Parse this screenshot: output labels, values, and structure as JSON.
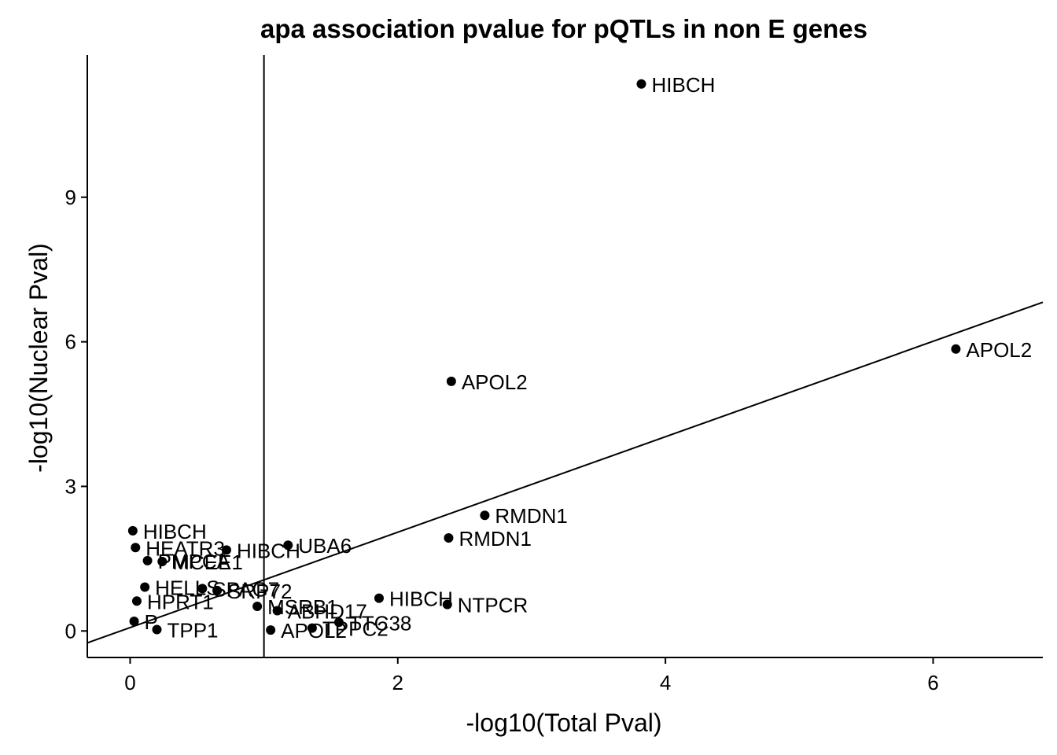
{
  "chart_data": {
    "type": "scatter",
    "title": "apa association pvalue for pQTLs in non E genes",
    "xlabel": "-log10(Total Pval)",
    "ylabel": "-log10(Nuclear Pval)",
    "xlim": [
      -0.32,
      6.82
    ],
    "ylim": [
      -0.55,
      11.95
    ],
    "xticks": [
      0,
      2,
      4,
      6
    ],
    "yticks": [
      0,
      3,
      6,
      9
    ],
    "vline_x": 1,
    "reference_line": {
      "intercept": 0.07,
      "slope": 0.99
    },
    "grid": false,
    "points": [
      {
        "x": 3.82,
        "y": 11.35,
        "label": "HIBCH"
      },
      {
        "x": 6.17,
        "y": 5.85,
        "label": "APOL2"
      },
      {
        "x": 2.4,
        "y": 5.18,
        "label": "APOL2"
      },
      {
        "x": 2.65,
        "y": 2.4,
        "label": "RMDN1"
      },
      {
        "x": 2.38,
        "y": 1.93,
        "label": "RMDN1"
      },
      {
        "x": 1.18,
        "y": 1.78,
        "label": "UBA6"
      },
      {
        "x": 0.72,
        "y": 1.68,
        "label": "HIBCH"
      },
      {
        "x": 0.02,
        "y": 2.08,
        "label": "HIBCH"
      },
      {
        "x": 0.04,
        "y": 1.73,
        "label": "HEATR3"
      },
      {
        "x": 0.13,
        "y": 1.46,
        "label": "PMPCA"
      },
      {
        "x": 0.24,
        "y": 1.44,
        "label": "MCEE1"
      },
      {
        "x": 1.86,
        "y": 0.68,
        "label": "HIBCH"
      },
      {
        "x": 2.37,
        "y": 0.55,
        "label": "NTPCR"
      },
      {
        "x": 0.11,
        "y": 0.91,
        "label": "HELLS"
      },
      {
        "x": 0.54,
        "y": 0.88,
        "label": "SPAG7"
      },
      {
        "x": 0.65,
        "y": 0.84,
        "label": "SRP72"
      },
      {
        "x": 0.05,
        "y": 0.62,
        "label": "HPRT1"
      },
      {
        "x": 0.95,
        "y": 0.51,
        "label": "MSRB1"
      },
      {
        "x": 1.1,
        "y": 0.42,
        "label": "ABHD17"
      },
      {
        "x": 1.56,
        "y": 0.18,
        "label": "TTC38"
      },
      {
        "x": 1.36,
        "y": 0.06,
        "label": "TPPC2"
      },
      {
        "x": 1.05,
        "y": 0.02,
        "label": "APOL2"
      },
      {
        "x": 0.03,
        "y": 0.2,
        "label": "P"
      },
      {
        "x": 0.2,
        "y": 0.03,
        "label": "TPP1"
      }
    ]
  }
}
